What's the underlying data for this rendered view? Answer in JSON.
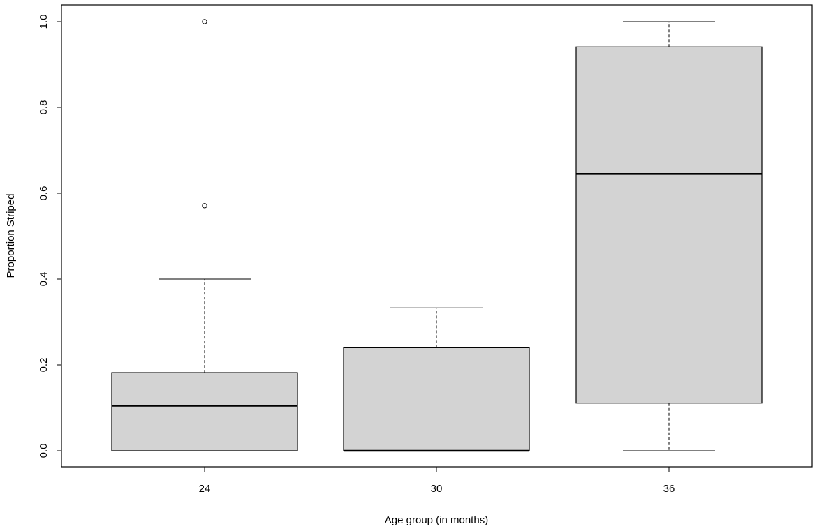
{
  "chart_data": {
    "type": "boxplot",
    "title": "",
    "xlabel": "Age group (in months)",
    "ylabel": "Proportion Striped",
    "ylim": [
      0.0,
      1.0
    ],
    "y_ticks": [
      "0.0",
      "0.2",
      "0.4",
      "0.6",
      "0.8",
      "1.0"
    ],
    "categories": [
      "24",
      "30",
      "36"
    ],
    "boxes": [
      {
        "category": "24",
        "whisker_low": 0.0,
        "q1": 0.0,
        "median": 0.105,
        "q3": 0.182,
        "whisker_high": 0.4,
        "outliers": [
          0.571,
          1.0
        ]
      },
      {
        "category": "30",
        "whisker_low": 0.0,
        "q1": 0.0,
        "median": 0.0,
        "q3": 0.24,
        "whisker_high": 0.333,
        "outliers": []
      },
      {
        "category": "36",
        "whisker_low": 0.0,
        "q1": 0.111,
        "median": 0.645,
        "q3": 0.941,
        "whisker_high": 1.0,
        "outliers": []
      }
    ],
    "grid": false,
    "legend": "none",
    "box_fill": "#d3d3d3",
    "line_color": "#000000"
  }
}
